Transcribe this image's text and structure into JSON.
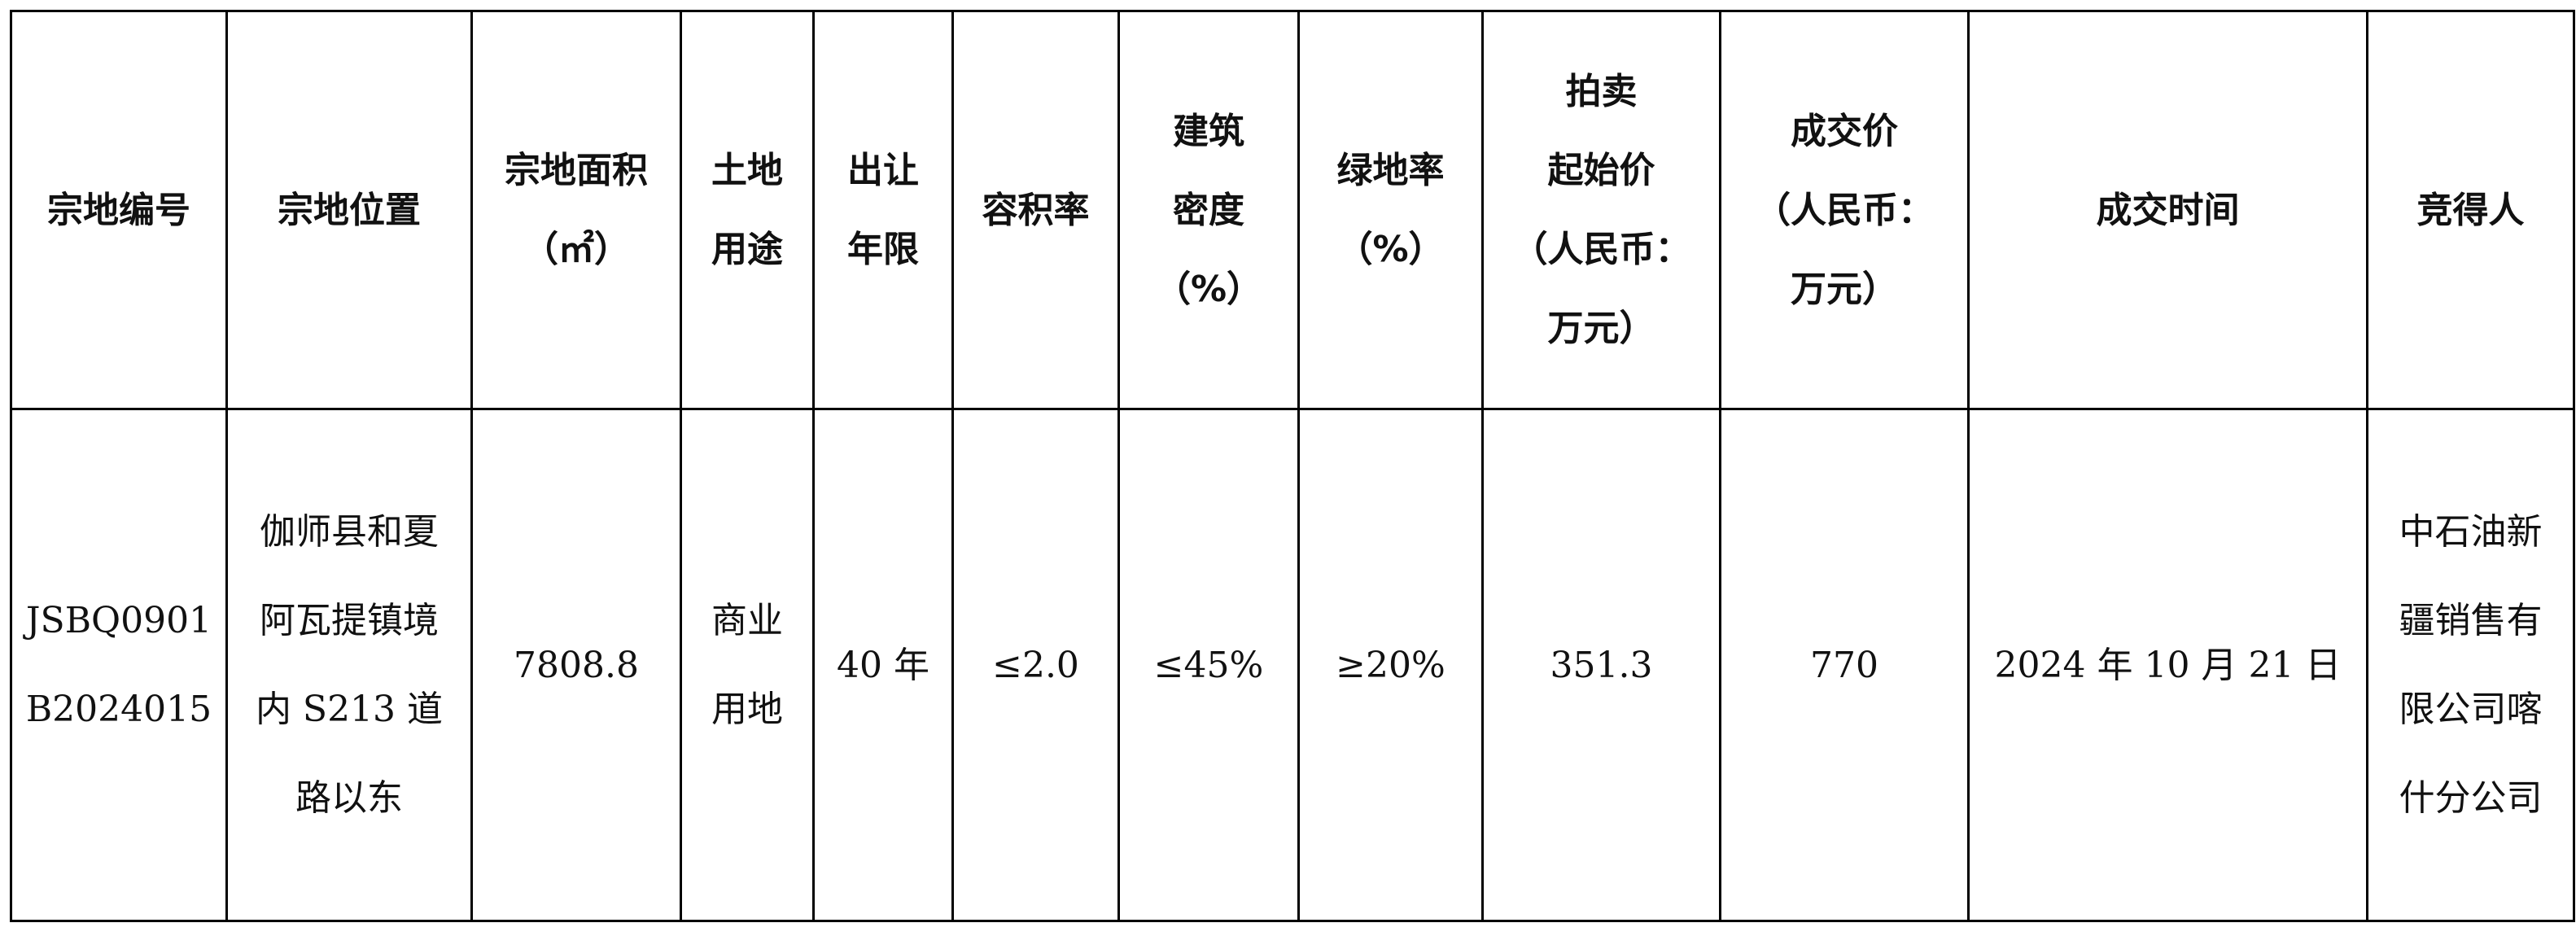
{
  "table": {
    "headers": [
      [
        "宗地编号"
      ],
      [
        "宗地位置"
      ],
      [
        "宗地面积",
        "（㎡）"
      ],
      [
        "土地",
        "用途"
      ],
      [
        "出让",
        "年限"
      ],
      [
        "容积率"
      ],
      [
        "建筑",
        "密度",
        "（%）"
      ],
      [
        "绿地率",
        "（%）"
      ],
      [
        "拍卖",
        "起始价",
        "（人民币：",
        "万元）"
      ],
      [
        "成交价",
        "（人民币：",
        "万元）"
      ],
      [
        "成交时间"
      ],
      [
        "竞得人"
      ]
    ],
    "rows": [
      [
        [
          "JSBQ0901",
          "B2024015"
        ],
        [
          "伽师县和夏",
          "阿瓦提镇境",
          "内 S213 道",
          "路以东"
        ],
        [
          "7808.8"
        ],
        [
          "商业",
          "用地"
        ],
        [
          "40 年"
        ],
        [
          "≤2.0"
        ],
        [
          "≤45%"
        ],
        [
          "≥20%"
        ],
        [
          "351.3"
        ],
        [
          "770"
        ],
        [
          "2024 年 10 月 21 日"
        ],
        [
          "中石油新",
          "疆销售有",
          "限公司喀",
          "什分公司"
        ]
      ]
    ]
  }
}
